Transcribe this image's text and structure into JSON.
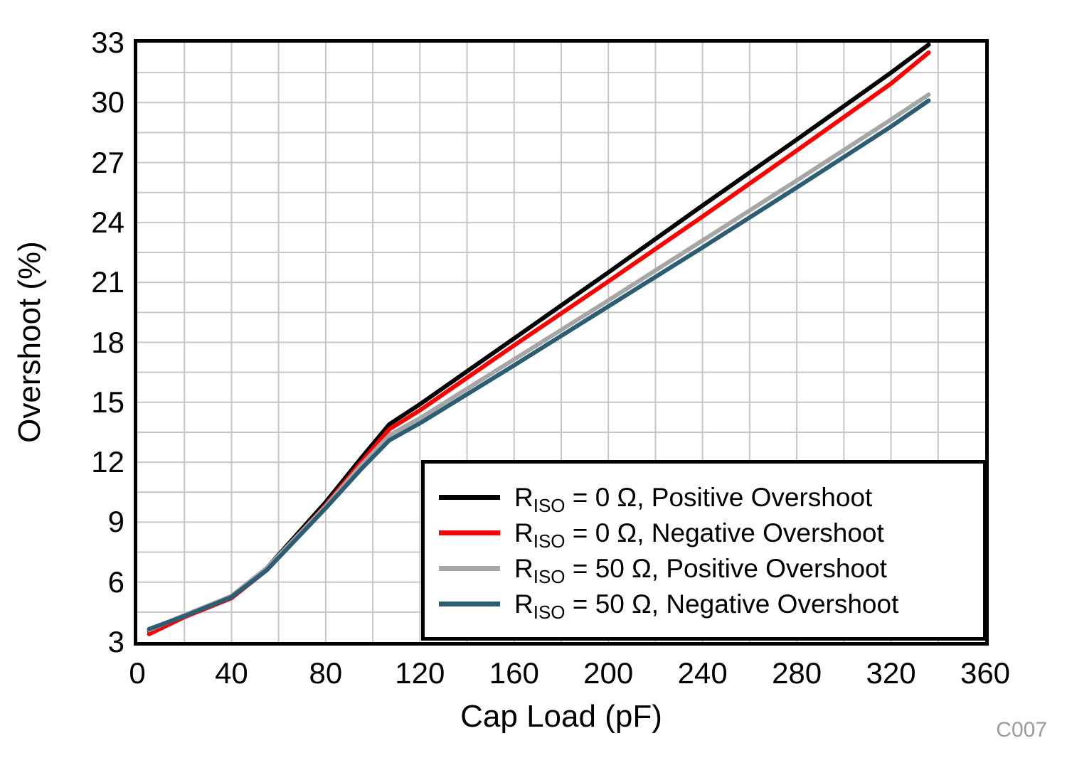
{
  "figure": {
    "code_label": "C007",
    "background": "#ffffff",
    "border_color": "#000000",
    "grid_color": "#c6c6c6",
    "code_label_color": "#9b9b9b"
  },
  "chart_data": {
    "type": "line",
    "title": "",
    "xlabel": "Cap Load (pF)",
    "ylabel": "Overshoot (%)",
    "xlim": [
      0,
      360
    ],
    "ylim": [
      3,
      33
    ],
    "grid": "on",
    "x_minor_grid_step": 20,
    "y_minor_grid_step": 1.5,
    "x_tick_labels": [
      "0",
      "40",
      "80",
      "120",
      "160",
      "200",
      "240",
      "280",
      "320",
      "360"
    ],
    "x_tick_values": [
      0,
      40,
      80,
      120,
      160,
      200,
      240,
      280,
      320,
      360
    ],
    "y_tick_labels": [
      "3",
      "6",
      "9",
      "12",
      "15",
      "18",
      "21",
      "24",
      "27",
      "30",
      "33"
    ],
    "y_tick_values": [
      3,
      6,
      9,
      12,
      15,
      18,
      21,
      24,
      27,
      30,
      33
    ],
    "legend_position": "inside lower right",
    "x": [
      5,
      20,
      40,
      55,
      80,
      95,
      107,
      120,
      160,
      200,
      240,
      280,
      320,
      336
    ],
    "series": [
      {
        "color": "#000000",
        "legend": {
          "r": "R",
          "sub": "ISO",
          "rest": " = 0 Ω, Positive Overshoot"
        },
        "values": [
          3.55,
          4.3,
          5.3,
          6.7,
          10.0,
          12.2,
          13.9,
          14.9,
          18.2,
          21.5,
          24.85,
          28.15,
          31.5,
          32.9
        ]
      },
      {
        "color": "#ff0000",
        "legend": {
          "r": "R",
          "sub": "ISO",
          "rest": " = 0 Ω, Negative Overshoot"
        },
        "values": [
          3.4,
          4.25,
          5.2,
          6.6,
          9.85,
          12.0,
          13.65,
          14.6,
          17.85,
          21.05,
          24.3,
          27.6,
          30.95,
          32.5
        ]
      },
      {
        "color": "#a6a6a6",
        "legend": {
          "r": "R",
          "sub": "ISO",
          "rest": " = 50 Ω, Positive Overshoot"
        },
        "values": [
          3.6,
          4.35,
          5.3,
          6.7,
          9.8,
          11.85,
          13.35,
          14.2,
          17.15,
          20.1,
          23.1,
          26.1,
          29.15,
          30.4
        ]
      },
      {
        "color": "#2b5e75",
        "legend": {
          "r": "R",
          "sub": "ISO",
          "rest": " = 50 Ω, Negative Overshoot"
        },
        "values": [
          3.65,
          4.3,
          5.25,
          6.6,
          9.7,
          11.65,
          13.1,
          13.95,
          16.85,
          19.8,
          22.75,
          25.75,
          28.8,
          30.1
        ]
      }
    ]
  }
}
